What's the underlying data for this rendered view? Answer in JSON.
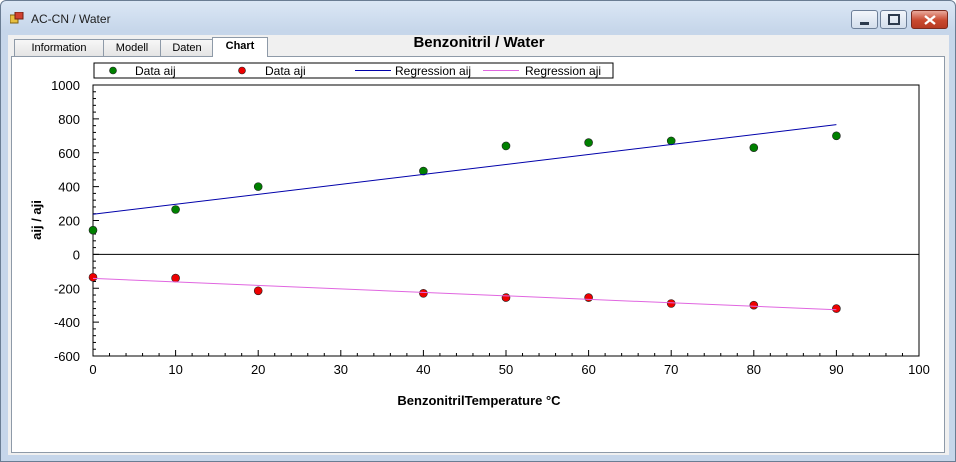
{
  "window": {
    "title": "AC-CN / Water"
  },
  "tabs": [
    {
      "label": "Information"
    },
    {
      "label": "Modell"
    },
    {
      "label": "Daten"
    },
    {
      "label": "Chart"
    }
  ],
  "chart_data": {
    "type": "scatter",
    "title": "Benzonitril / Water",
    "xlabel": "BenzonitrilTemperature °C",
    "ylabel": "aij / aji",
    "xlim": [
      0,
      100
    ],
    "ylim": [
      -600,
      1000
    ],
    "xticks": [
      "0",
      "10",
      "20",
      "30",
      "40",
      "50",
      "60",
      "70",
      "80",
      "90",
      "100"
    ],
    "yticks": [
      "-600",
      "-400",
      "-200",
      "0",
      "200",
      "400",
      "600",
      "800",
      "1000"
    ],
    "grid": false,
    "legend_position": "top",
    "series": [
      {
        "name": "Data aij",
        "kind": "points",
        "color": "#008000",
        "x": [
          0,
          10,
          20,
          40,
          50,
          60,
          70,
          80,
          90
        ],
        "y": [
          143,
          265,
          400,
          492,
          640,
          660,
          670,
          630,
          700
        ]
      },
      {
        "name": "Data aji",
        "kind": "points",
        "color": "#ee0000",
        "x": [
          0,
          10,
          20,
          40,
          50,
          60,
          70,
          80,
          90
        ],
        "y": [
          -135,
          -140,
          -215,
          -230,
          -255,
          -255,
          -290,
          -300,
          -320
        ]
      },
      {
        "name": "Regression aij",
        "kind": "line",
        "color": "#0000aa",
        "x": [
          0,
          90
        ],
        "y": [
          237,
          766
        ]
      },
      {
        "name": "Regression aji",
        "kind": "line",
        "color": "#e066e0",
        "x": [
          0,
          90
        ],
        "y": [
          -142,
          -327
        ]
      }
    ]
  }
}
